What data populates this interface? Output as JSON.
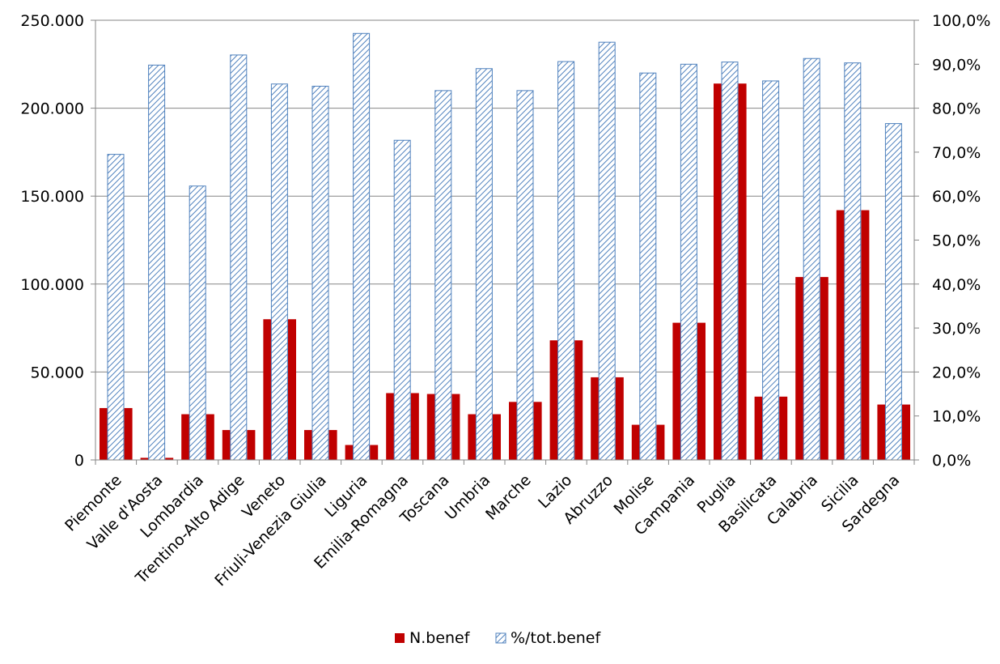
{
  "chart_data": {
    "type": "bar",
    "categories": [
      "Piemonte",
      "Valle d'Aosta",
      "Lombardia",
      "Trentino-Alto Adige",
      "Veneto",
      "Friuli-Venezia Giulia",
      "Liguria",
      "Emilia-Romagna",
      "Toscana",
      "Umbria",
      "Marche",
      "Lazio",
      "Abruzzo",
      "Molise",
      "Campania",
      "Puglia",
      "Basilicata",
      "Calabria",
      "Sicilia",
      "Sardegna"
    ],
    "series": [
      {
        "name": "N.benef",
        "axis": "left",
        "color": "#c00000",
        "values": [
          29500,
          1200,
          26000,
          17000,
          80000,
          17000,
          8500,
          38000,
          37500,
          26000,
          33000,
          68000,
          47000,
          20000,
          78000,
          214000,
          36000,
          104000,
          142000,
          31500
        ]
      },
      {
        "name": "%/tot.benef",
        "axis": "right",
        "color": "#4f81bd",
        "pattern": "diagonal-hatch",
        "values": [
          69.5,
          89.8,
          62.3,
          92.1,
          85.5,
          85.0,
          97.0,
          72.7,
          84.0,
          89.0,
          84.0,
          90.6,
          95.0,
          88.0,
          90.0,
          90.5,
          86.2,
          91.3,
          90.3,
          76.5
        ]
      }
    ],
    "y_left": {
      "min": 0,
      "max": 250000,
      "ticks": [
        "0",
        "50.000",
        "100.000",
        "150.000",
        "200.000",
        "250.000"
      ]
    },
    "y_right": {
      "min": 0,
      "max": 100,
      "ticks": [
        "0,0%",
        "10,0%",
        "20,0%",
        "30,0%",
        "40,0%",
        "50,0%",
        "60,0%",
        "70,0%",
        "80,0%",
        "90,0%",
        "100,0%"
      ]
    },
    "grid": true,
    "legend_position": "bottom",
    "title": "",
    "xlabel": "",
    "ylabel": ""
  }
}
